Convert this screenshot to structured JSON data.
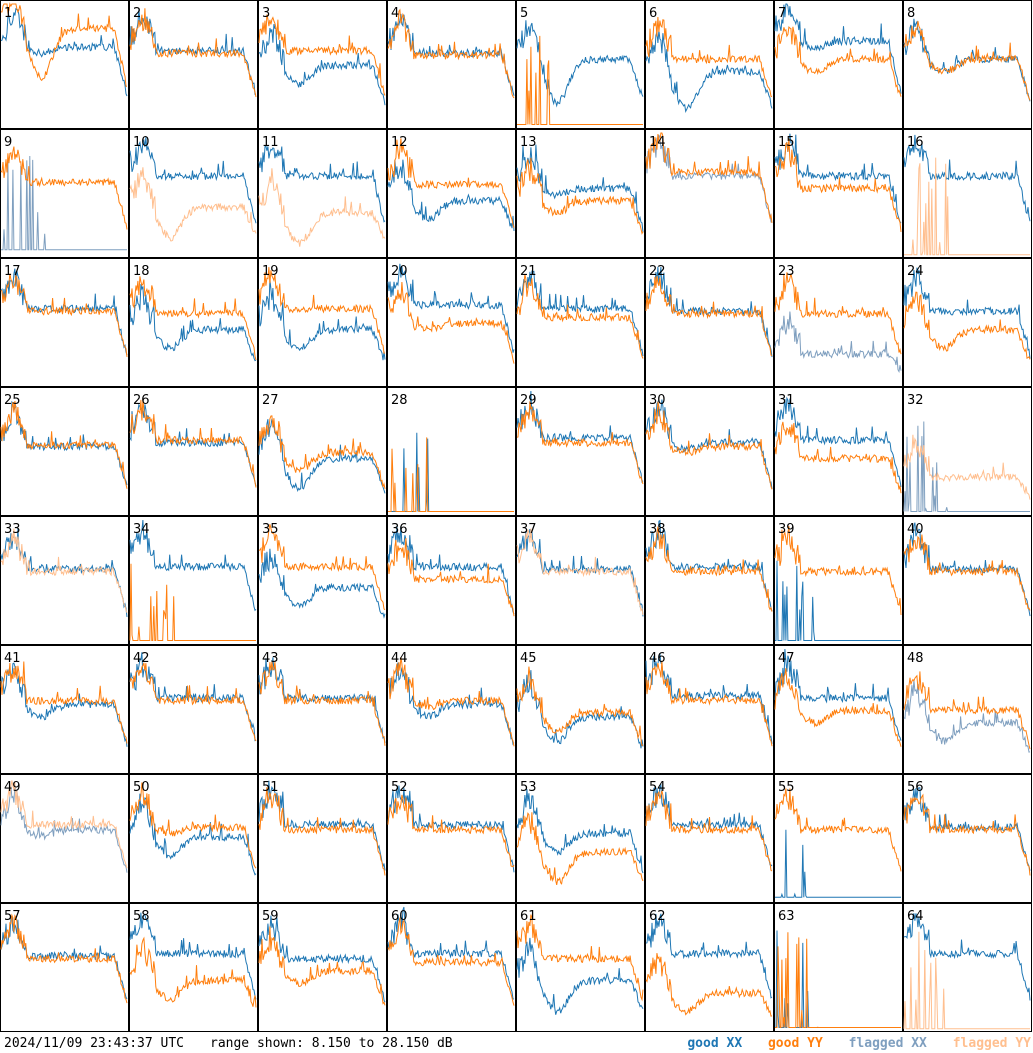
{
  "footer": {
    "timestamp": "2024/11/09 23:43:37 UTC",
    "range_text": "range shown: 8.150 to 28.150 dB"
  },
  "legend": [
    {
      "label": "good XX",
      "color": "#1f77b4"
    },
    {
      "label": "good YY",
      "color": "#ff7f0e"
    },
    {
      "label": "flagged XX",
      "color": "#7f9fbf"
    },
    {
      "label": "flagged YY",
      "color": "#ffbf8f"
    }
  ],
  "chart_data": {
    "type": "line",
    "layout": "small-multiples 8x8",
    "y_range_db": [
      8.15,
      28.15
    ],
    "panels": [
      {
        "id": 1,
        "xx": "good",
        "yy": "good",
        "xx_level": 0.65,
        "yy_level": 0.8,
        "xx_dip": 0.05,
        "yy_dip": 0.4
      },
      {
        "id": 2,
        "xx": "good",
        "yy": "good",
        "xx_level": 0.62,
        "yy_level": 0.6,
        "xx_dip": 0.0,
        "yy_dip": 0.0
      },
      {
        "id": 3,
        "xx": "good",
        "yy": "good",
        "xx_level": 0.5,
        "yy_level": 0.62,
        "xx_dip": 0.15,
        "yy_dip": 0.0
      },
      {
        "id": 4,
        "xx": "good",
        "yy": "good",
        "xx_level": 0.6,
        "yy_level": 0.58,
        "xx_dip": 0.0,
        "yy_dip": 0.0
      },
      {
        "id": 5,
        "xx": "good",
        "yy": "good",
        "xx_level": 0.55,
        "yy_level": 0.02,
        "xx_dip": 0.35,
        "yy_dip": 0.0
      },
      {
        "id": 6,
        "xx": "good",
        "yy": "good",
        "xx_level": 0.45,
        "yy_level": 0.55,
        "xx_dip": 0.3,
        "yy_dip": 0.0
      },
      {
        "id": 7,
        "xx": "good",
        "yy": "good",
        "xx_level": 0.7,
        "yy_level": 0.55,
        "xx_dip": 0.05,
        "yy_dip": 0.1
      },
      {
        "id": 8,
        "xx": "good",
        "yy": "good",
        "xx_level": 0.55,
        "yy_level": 0.55,
        "xx_dip": 0.1,
        "yy_dip": 0.1
      },
      {
        "id": 9,
        "xx": "flagged",
        "yy": "good",
        "xx_level": 0.05,
        "yy_level": 0.6,
        "xx_dip": 0.0,
        "yy_dip": 0.0
      },
      {
        "id": 10,
        "xx": "good",
        "yy": "flagged",
        "xx_level": 0.65,
        "yy_level": 0.4,
        "xx_dip": 0.0,
        "yy_dip": 0.25
      },
      {
        "id": 11,
        "xx": "good",
        "yy": "flagged",
        "xx_level": 0.65,
        "yy_level": 0.35,
        "xx_dip": 0.0,
        "yy_dip": 0.25
      },
      {
        "id": 12,
        "xx": "good",
        "yy": "good",
        "xx_level": 0.45,
        "yy_level": 0.58,
        "xx_dip": 0.15,
        "yy_dip": 0.0
      },
      {
        "id": 13,
        "xx": "good",
        "yy": "good",
        "xx_level": 0.55,
        "yy_level": 0.45,
        "xx_dip": 0.05,
        "yy_dip": 0.1
      },
      {
        "id": 14,
        "xx": "flagged",
        "yy": "good",
        "xx_level": 0.65,
        "yy_level": 0.68,
        "xx_dip": 0.0,
        "yy_dip": 0.0
      },
      {
        "id": 15,
        "xx": "good",
        "yy": "good",
        "xx_level": 0.65,
        "yy_level": 0.55,
        "xx_dip": 0.0,
        "yy_dip": 0.0
      },
      {
        "id": 16,
        "xx": "good",
        "yy": "flagged",
        "xx_level": 0.65,
        "yy_level": 0.01,
        "xx_dip": 0.0,
        "yy_dip": 0.0
      },
      {
        "id": 17,
        "xx": "good",
        "yy": "good",
        "xx_level": 0.62,
        "yy_level": 0.6,
        "xx_dip": 0.0,
        "yy_dip": 0.0
      },
      {
        "id": 18,
        "xx": "good",
        "yy": "good",
        "xx_level": 0.45,
        "yy_level": 0.58,
        "xx_dip": 0.15,
        "yy_dip": 0.0
      },
      {
        "id": 19,
        "xx": "good",
        "yy": "good",
        "xx_level": 0.45,
        "yy_level": 0.62,
        "xx_dip": 0.15,
        "yy_dip": 0.0
      },
      {
        "id": 20,
        "xx": "good",
        "yy": "good",
        "xx_level": 0.65,
        "yy_level": 0.5,
        "xx_dip": 0.0,
        "yy_dip": 0.05
      },
      {
        "id": 21,
        "xx": "good",
        "yy": "good",
        "xx_level": 0.62,
        "yy_level": 0.55,
        "xx_dip": 0.0,
        "yy_dip": 0.0
      },
      {
        "id": 22,
        "xx": "good",
        "yy": "good",
        "xx_level": 0.6,
        "yy_level": 0.58,
        "xx_dip": 0.0,
        "yy_dip": 0.0
      },
      {
        "id": 23,
        "xx": "flagged",
        "yy": "good",
        "xx_level": 0.25,
        "yy_level": 0.58,
        "xx_dip": 0.0,
        "yy_dip": 0.0
      },
      {
        "id": 24,
        "xx": "good",
        "yy": "good",
        "xx_level": 0.6,
        "yy_level": 0.45,
        "xx_dip": 0.0,
        "yy_dip": 0.15
      },
      {
        "id": 25,
        "xx": "good",
        "yy": "good",
        "xx_level": 0.55,
        "yy_level": 0.56,
        "xx_dip": 0.0,
        "yy_dip": 0.0
      },
      {
        "id": 26,
        "xx": "good",
        "yy": "good",
        "xx_level": 0.58,
        "yy_level": 0.6,
        "xx_dip": 0.0,
        "yy_dip": 0.0
      },
      {
        "id": 27,
        "xx": "good",
        "yy": "good",
        "xx_level": 0.45,
        "yy_level": 0.5,
        "xx_dip": 0.25,
        "yy_dip": 0.15
      },
      {
        "id": 28,
        "xx": "good",
        "yy": "good",
        "xx_level": 0.02,
        "yy_level": 0.02,
        "xx_dip": 0.0,
        "yy_dip": 0.0
      },
      {
        "id": 29,
        "xx": "good",
        "yy": "good",
        "xx_level": 0.62,
        "yy_level": 0.58,
        "xx_dip": 0.0,
        "yy_dip": 0.0
      },
      {
        "id": 30,
        "xx": "good",
        "yy": "good",
        "xx_level": 0.58,
        "yy_level": 0.55,
        "xx_dip": 0.05,
        "yy_dip": 0.05
      },
      {
        "id": 31,
        "xx": "good",
        "yy": "good",
        "xx_level": 0.6,
        "yy_level": 0.45,
        "xx_dip": 0.0,
        "yy_dip": 0.0
      },
      {
        "id": 32,
        "xx": "flagged",
        "yy": "flagged",
        "xx_level": 0.02,
        "yy_level": 0.3,
        "xx_dip": 0.0,
        "yy_dip": 0.0
      },
      {
        "id": 33,
        "xx": "good",
        "yy": "flagged",
        "xx_level": 0.6,
        "yy_level": 0.58,
        "xx_dip": 0.0,
        "yy_dip": 0.0
      },
      {
        "id": 34,
        "xx": "good",
        "yy": "good",
        "xx_level": 0.62,
        "yy_level": 0.02,
        "xx_dip": 0.0,
        "yy_dip": 0.0
      },
      {
        "id": 35,
        "xx": "good",
        "yy": "good",
        "xx_level": 0.45,
        "yy_level": 0.62,
        "xx_dip": 0.15,
        "yy_dip": 0.0
      },
      {
        "id": 36,
        "xx": "good",
        "yy": "good",
        "xx_level": 0.62,
        "yy_level": 0.52,
        "xx_dip": 0.0,
        "yy_dip": 0.0
      },
      {
        "id": 37,
        "xx": "good",
        "yy": "flagged",
        "xx_level": 0.6,
        "yy_level": 0.58,
        "xx_dip": 0.0,
        "yy_dip": 0.0
      },
      {
        "id": 38,
        "xx": "good",
        "yy": "good",
        "xx_level": 0.62,
        "yy_level": 0.58,
        "xx_dip": 0.0,
        "yy_dip": 0.0
      },
      {
        "id": 39,
        "xx": "good",
        "yy": "good",
        "xx_level": 0.02,
        "yy_level": 0.58,
        "xx_dip": 0.0,
        "yy_dip": 0.0
      },
      {
        "id": 40,
        "xx": "good",
        "yy": "good",
        "xx_level": 0.6,
        "yy_level": 0.58,
        "xx_dip": 0.0,
        "yy_dip": 0.0
      },
      {
        "id": 41,
        "xx": "good",
        "yy": "good",
        "xx_level": 0.55,
        "yy_level": 0.58,
        "xx_dip": 0.1,
        "yy_dip": 0.0
      },
      {
        "id": 42,
        "xx": "good",
        "yy": "good",
        "xx_level": 0.6,
        "yy_level": 0.58,
        "xx_dip": 0.0,
        "yy_dip": 0.0
      },
      {
        "id": 43,
        "xx": "good",
        "yy": "good",
        "xx_level": 0.6,
        "yy_level": 0.58,
        "xx_dip": 0.0,
        "yy_dip": 0.0
      },
      {
        "id": 44,
        "xx": "good",
        "yy": "good",
        "xx_level": 0.55,
        "yy_level": 0.58,
        "xx_dip": 0.1,
        "yy_dip": 0.05
      },
      {
        "id": 45,
        "xx": "good",
        "yy": "good",
        "xx_level": 0.45,
        "yy_level": 0.48,
        "xx_dip": 0.2,
        "yy_dip": 0.15
      },
      {
        "id": 46,
        "xx": "good",
        "yy": "good",
        "xx_level": 0.62,
        "yy_level": 0.58,
        "xx_dip": 0.0,
        "yy_dip": 0.0
      },
      {
        "id": 47,
        "xx": "good",
        "yy": "good",
        "xx_level": 0.6,
        "yy_level": 0.5,
        "xx_dip": 0.0,
        "yy_dip": 0.1
      },
      {
        "id": 48,
        "xx": "flagged",
        "yy": "good",
        "xx_level": 0.4,
        "yy_level": 0.5,
        "xx_dip": 0.15,
        "yy_dip": 0.0
      },
      {
        "id": 49,
        "xx": "flagged",
        "yy": "flagged",
        "xx_level": 0.58,
        "yy_level": 0.62,
        "xx_dip": 0.05,
        "yy_dip": 0.0
      },
      {
        "id": 50,
        "xx": "good",
        "yy": "good",
        "xx_level": 0.52,
        "yy_level": 0.6,
        "xx_dip": 0.15,
        "yy_dip": 0.05
      },
      {
        "id": 51,
        "xx": "good",
        "yy": "good",
        "xx_level": 0.62,
        "yy_level": 0.58,
        "xx_dip": 0.0,
        "yy_dip": 0.0
      },
      {
        "id": 52,
        "xx": "good",
        "yy": "good",
        "xx_level": 0.62,
        "yy_level": 0.58,
        "xx_dip": 0.0,
        "yy_dip": 0.0
      },
      {
        "id": 53,
        "xx": "good",
        "yy": "good",
        "xx_level": 0.55,
        "yy_level": 0.4,
        "xx_dip": 0.15,
        "yy_dip": 0.25
      },
      {
        "id": 54,
        "xx": "good",
        "yy": "good",
        "xx_level": 0.62,
        "yy_level": 0.58,
        "xx_dip": 0.0,
        "yy_dip": 0.0
      },
      {
        "id": 55,
        "xx": "good",
        "yy": "good",
        "xx_level": 0.03,
        "yy_level": 0.58,
        "xx_dip": 0.0,
        "yy_dip": 0.0
      },
      {
        "id": 56,
        "xx": "good",
        "yy": "good",
        "xx_level": 0.6,
        "yy_level": 0.58,
        "xx_dip": 0.0,
        "yy_dip": 0.0
      },
      {
        "id": 57,
        "xx": "good",
        "yy": "good",
        "xx_level": 0.6,
        "yy_level": 0.58,
        "xx_dip": 0.0,
        "yy_dip": 0.0
      },
      {
        "id": 58,
        "xx": "good",
        "yy": "good",
        "xx_level": 0.62,
        "yy_level": 0.4,
        "xx_dip": 0.0,
        "yy_dip": 0.15
      },
      {
        "id": 59,
        "xx": "good",
        "yy": "good",
        "xx_level": 0.58,
        "yy_level": 0.48,
        "xx_dip": 0.0,
        "yy_dip": 0.1
      },
      {
        "id": 60,
        "xx": "good",
        "yy": "good",
        "xx_level": 0.62,
        "yy_level": 0.55,
        "xx_dip": 0.0,
        "yy_dip": 0.0
      },
      {
        "id": 61,
        "xx": "good",
        "yy": "good",
        "xx_level": 0.4,
        "yy_level": 0.58,
        "xx_dip": 0.25,
        "yy_dip": 0.0
      },
      {
        "id": 62,
        "xx": "good",
        "yy": "good",
        "xx_level": 0.62,
        "yy_level": 0.3,
        "xx_dip": 0.0,
        "yy_dip": 0.15
      },
      {
        "id": 63,
        "xx": "good",
        "yy": "good",
        "xx_level": 0.02,
        "yy_level": 0.02,
        "xx_dip": 0.0,
        "yy_dip": 0.0
      },
      {
        "id": 64,
        "xx": "good",
        "yy": "flagged",
        "xx_level": 0.62,
        "yy_level": 0.01,
        "xx_dip": 0.0,
        "yy_dip": 0.0
      }
    ]
  }
}
